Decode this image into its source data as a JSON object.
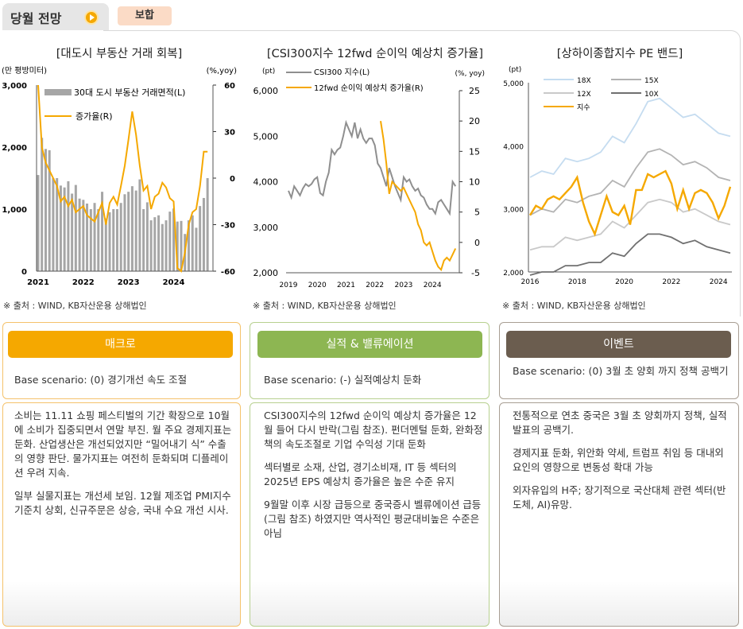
{
  "header": {
    "title": "당월 전망",
    "badge": "보합"
  },
  "colors": {
    "orange": "#f5a800",
    "green": "#8db652",
    "brown": "#6b5d4f",
    "grey_bar": "#a6a6a6",
    "grey_line": "#8f8f8f"
  },
  "charts": [
    {
      "title": "[대도시 부동산 거래 회복]",
      "source": "※ 출처 : WIND, KB자산운용 상해법인"
    },
    {
      "title": "[CSI300지수 12fwd 순이익 예상치 증가율]",
      "source": "※ 출처 : WIND, KB자산운용 상해법인"
    },
    {
      "title": "[상하이종합지수 PE 밴드]",
      "source": "※ 출처 : WIND, KB자산운용 상해법인"
    }
  ],
  "chart_data": [
    {
      "type": "bar",
      "title": "[대도시 부동산 거래 회복]",
      "left_unit": "(만 평방미터)",
      "right_unit": "(%,yoy)",
      "ylim_left": [
        0,
        3000
      ],
      "left_ticks": [
        "3,000",
        "2,000",
        "1,000",
        "0"
      ],
      "ylim_right": [
        -60,
        60
      ],
      "right_ticks": [
        "60",
        "30",
        "0",
        "-30",
        "-60"
      ],
      "x_ticks": [
        "2021",
        "2022",
        "2023",
        "2024"
      ],
      "x_range": [
        2021,
        2024.8
      ],
      "series": [
        {
          "name": "30대 도시 부동산 거래면적(L)",
          "type": "bar",
          "x": [
            2021.0,
            2021.083,
            2021.167,
            2021.25,
            2021.333,
            2021.417,
            2021.5,
            2021.583,
            2021.667,
            2021.75,
            2021.833,
            2021.917,
            2022.0,
            2022.083,
            2022.167,
            2022.25,
            2022.333,
            2022.417,
            2022.5,
            2022.583,
            2022.667,
            2022.75,
            2022.833,
            2022.917,
            2023.0,
            2023.083,
            2023.167,
            2023.25,
            2023.333,
            2023.417,
            2023.5,
            2023.583,
            2023.667,
            2023.75,
            2023.833,
            2023.917,
            2024.0,
            2024.083,
            2024.167,
            2024.25,
            2024.333,
            2024.417,
            2024.5,
            2024.583,
            2024.667,
            2024.75
          ],
          "values": [
            1550,
            2150,
            1970,
            1950,
            1500,
            1500,
            1380,
            1350,
            1450,
            1250,
            1390,
            1170,
            1150,
            1090,
            1000,
            1100,
            1000,
            1280,
            850,
            950,
            1000,
            1000,
            1100,
            1240,
            1280,
            1370,
            1300,
            1480,
            1000,
            1110,
            820,
            870,
            900,
            760,
            820,
            960,
            1010,
            800,
            810,
            600,
            820,
            900,
            700,
            1050,
            1180,
            1500
          ]
        },
        {
          "name": "증가율(R)",
          "type": "line",
          "x": [
            2021.0,
            2021.083,
            2021.167,
            2021.25,
            2021.333,
            2021.417,
            2021.5,
            2021.583,
            2021.667,
            2021.75,
            2021.833,
            2021.917,
            2022.0,
            2022.083,
            2022.167,
            2022.25,
            2022.333,
            2022.417,
            2022.5,
            2022.583,
            2022.667,
            2022.75,
            2022.833,
            2022.917,
            2023.0,
            2023.083,
            2023.167,
            2023.25,
            2023.333,
            2023.417,
            2023.5,
            2023.583,
            2023.667,
            2023.75,
            2023.833,
            2023.917,
            2024.0,
            2024.083,
            2024.167,
            2024.25,
            2024.333,
            2024.417,
            2024.5,
            2024.583,
            2024.667,
            2024.75
          ],
          "values": [
            60,
            20,
            10,
            5,
            0,
            -5,
            -15,
            -12,
            -18,
            -14,
            -22,
            -20,
            -18,
            -24,
            -26,
            -28,
            -22,
            -16,
            -30,
            -16,
            -12,
            -17,
            -5,
            8,
            25,
            43,
            28,
            8,
            -8,
            -5,
            -20,
            -12,
            -10,
            -3,
            -6,
            -13,
            -15,
            -58,
            -60,
            -48,
            -30,
            -22,
            -20,
            -5,
            17,
            17
          ]
        }
      ]
    },
    {
      "type": "line",
      "title": "[CSI300지수 12fwd 순이익 예상치 증가율]",
      "left_unit": "(pt)",
      "right_unit": "(%, yoy)",
      "ylim_left": [
        2000,
        6000
      ],
      "left_ticks": [
        "6,000",
        "5,000",
        "4,000",
        "3,000",
        "2,000"
      ],
      "ylim_right": [
        -5,
        25
      ],
      "right_ticks": [
        "25",
        "20",
        "15",
        "10",
        "5",
        "0",
        "-5"
      ],
      "x_ticks": [
        "2019",
        "2020",
        "2021",
        "2022",
        "2023",
        "2024"
      ],
      "x_range": [
        2019,
        2024.85
      ],
      "series": [
        {
          "name": "CSI300 지수(L)",
          "x": [
            2019.0,
            2019.1,
            2019.2,
            2019.3,
            2019.4,
            2019.5,
            2019.6,
            2019.7,
            2019.8,
            2019.9,
            2020.0,
            2020.1,
            2020.2,
            2020.3,
            2020.4,
            2020.5,
            2020.6,
            2020.7,
            2020.8,
            2020.9,
            2021.0,
            2021.1,
            2021.2,
            2021.3,
            2021.4,
            2021.5,
            2021.6,
            2021.7,
            2021.8,
            2021.9,
            2022.0,
            2022.1,
            2022.2,
            2022.3,
            2022.4,
            2022.5,
            2022.6,
            2022.7,
            2022.8,
            2022.9,
            2023.0,
            2023.1,
            2023.2,
            2023.3,
            2023.4,
            2023.5,
            2023.6,
            2023.7,
            2023.8,
            2023.9,
            2024.0,
            2024.1,
            2024.2,
            2024.3,
            2024.4,
            2024.5,
            2024.6,
            2024.7,
            2024.8
          ],
          "values": [
            3800,
            3650,
            3900,
            3800,
            3700,
            3850,
            3950,
            3900,
            3950,
            4050,
            4100,
            3750,
            3700,
            4000,
            4200,
            4700,
            4600,
            4700,
            4750,
            5000,
            5300,
            5150,
            5000,
            5300,
            4950,
            5150,
            4950,
            4850,
            4950,
            4950,
            4800,
            4400,
            4300,
            4100,
            3900,
            4300,
            4100,
            3900,
            3750,
            3600,
            4100,
            4000,
            4050,
            3900,
            3800,
            3850,
            3700,
            3650,
            3500,
            3400,
            3400,
            3300,
            3550,
            3600,
            3500,
            3400,
            3300,
            4000,
            3900
          ]
        },
        {
          "name": "12fwd 순이익 예상치 증가율(R)",
          "x": [
            2022.2,
            2022.3,
            2022.4,
            2022.5,
            2022.6,
            2022.7,
            2022.8,
            2022.9,
            2023.0,
            2023.1,
            2023.2,
            2023.3,
            2023.4,
            2023.5,
            2023.6,
            2023.7,
            2023.8,
            2023.9,
            2024.0,
            2024.1,
            2024.2,
            2024.3,
            2024.4,
            2024.5,
            2024.6,
            2024.7,
            2024.8
          ],
          "values": [
            20,
            17,
            13,
            8,
            10,
            9.5,
            9,
            8.5,
            9,
            8,
            7,
            6,
            5,
            3,
            2,
            0,
            -0.5,
            0,
            -1.5,
            -3,
            -4,
            -4.5,
            -3,
            -2.5,
            -3,
            -2,
            -1
          ]
        }
      ]
    },
    {
      "type": "line",
      "title": "[상하이종합지수 PE 밴드]",
      "left_unit": "(pt)",
      "ylim": [
        2000,
        5000
      ],
      "y_ticks": [
        "5,000",
        "4,000",
        "3,000",
        "2,000"
      ],
      "x_ticks": [
        "2016",
        "2018",
        "2020",
        "2022",
        "2024"
      ],
      "x_range": [
        2016,
        2024.5
      ],
      "series": [
        {
          "name": "18X",
          "x": [
            2016,
            2016.5,
            2017,
            2017.5,
            2018,
            2018.5,
            2019,
            2019.5,
            2020,
            2020.5,
            2021,
            2021.5,
            2022,
            2022.5,
            2023,
            2023.5,
            2024,
            2024.5
          ],
          "values": [
            3500,
            3600,
            3550,
            3800,
            3750,
            3800,
            3900,
            4150,
            4050,
            4350,
            4700,
            4750,
            4600,
            4450,
            4500,
            4350,
            4200,
            4150
          ]
        },
        {
          "name": "15X",
          "x": [
            2016,
            2016.5,
            2017,
            2017.5,
            2018,
            2018.5,
            2019,
            2019.5,
            2020,
            2020.5,
            2021,
            2021.5,
            2022,
            2022.5,
            2023,
            2023.5,
            2024,
            2024.5
          ],
          "values": [
            2900,
            3000,
            2950,
            3150,
            3100,
            3200,
            3250,
            3450,
            3350,
            3650,
            3900,
            3950,
            3850,
            3700,
            3750,
            3650,
            3500,
            3450
          ]
        },
        {
          "name": "12X",
          "x": [
            2016,
            2016.5,
            2017,
            2017.5,
            2018,
            2018.5,
            2019,
            2019.5,
            2020,
            2020.5,
            2021,
            2021.5,
            2022,
            2022.5,
            2023,
            2023.5,
            2024,
            2024.5
          ],
          "values": [
            2350,
            2400,
            2400,
            2550,
            2500,
            2550,
            2600,
            2800,
            2700,
            2900,
            3100,
            3150,
            3100,
            2950,
            3000,
            2900,
            2800,
            2750
          ]
        },
        {
          "name": "10X",
          "x": [
            2016,
            2016.5,
            2017,
            2017.5,
            2018,
            2018.5,
            2019,
            2019.5,
            2020,
            2020.5,
            2021,
            2021.5,
            2022,
            2022.5,
            2023,
            2023.5,
            2024,
            2024.5
          ],
          "values": [
            1950,
            2000,
            2000,
            2100,
            2100,
            2150,
            2150,
            2300,
            2250,
            2450,
            2600,
            2600,
            2550,
            2450,
            2500,
            2400,
            2350,
            2300
          ]
        },
        {
          "name": "지수",
          "x": [
            2016,
            2016.25,
            2016.5,
            2016.75,
            2017,
            2017.25,
            2017.5,
            2017.75,
            2018,
            2018.25,
            2018.5,
            2018.75,
            2019,
            2019.25,
            2019.5,
            2019.75,
            2020,
            2020.25,
            2020.5,
            2020.75,
            2021,
            2021.25,
            2021.5,
            2021.75,
            2022,
            2022.25,
            2022.5,
            2022.75,
            2023,
            2023.25,
            2023.5,
            2023.75,
            2024,
            2024.25,
            2024.5
          ],
          "values": [
            2900,
            3050,
            3000,
            3150,
            3200,
            3150,
            3250,
            3350,
            3500,
            3100,
            2800,
            2600,
            2900,
            3200,
            2950,
            2900,
            3050,
            2750,
            3300,
            3300,
            3550,
            3500,
            3550,
            3600,
            3400,
            3000,
            3300,
            3000,
            3250,
            3300,
            3250,
            3100,
            2850,
            3050,
            3350
          ]
        }
      ]
    }
  ],
  "panels": [
    {
      "header": "매크로",
      "scenario": "Base scenario: (0) 경기개선 속도 조절",
      "paragraphs": [
        "소비는 11.11 쇼핑 페스티벌의 기간 확장으로 10월에 소비가 집중되면서 연말 부진. 월 주요 경제지표는 둔화. 산업생산은 개선되었지만 “밀어내기 식” 수출의 영향 판단. 물가지표는 여전히 둔화되며 디플레이션 우려 지속.",
        "일부 실물지표는 개선세 보임. 12월 제조업 PMI지수 기준치 상회, 신규주문은 상승, 국내 수요 개선 시사."
      ]
    },
    {
      "header": "실적 & 밸류에이션",
      "scenario": "Base scenario: (-) 실적예상치 둔화",
      "paragraphs": [
        "CSI300지수의 12fwd 순이익 예상치 증가율은 12월 들어 다시 반락(그림 참조). 펀더멘털 둔화, 완화정책의 속도조절로 기업 수익성 기대 둔화",
        "섹터별로 소재, 산업, 경기소비재, IT 등 섹터의 2025년 EPS 예상치 증가율은 높은 수준 유지",
        "9월말 이후 시장 급등으로 중국증시 벨류에이션 급등(그림 참조) 하였지만 역사적인 평균대비높은 수준은 아님"
      ]
    },
    {
      "header": "이벤트",
      "scenario": "Base scenario: (0) 3월 초 양회 까지 정책 공백기",
      "paragraphs": [
        "전통적으로 연초 중국은 3월 초 양회까지 정책, 실적발표의 공백기.",
        "경제지표 둔화, 위안화 약세, 트럼프 취임 등 대내외 요인의 영향으로 변동성 확대 가능",
        "외자유입의 H주; 장기적으로 국산대체 관련 섹터(반도체, AI)유망."
      ]
    }
  ]
}
